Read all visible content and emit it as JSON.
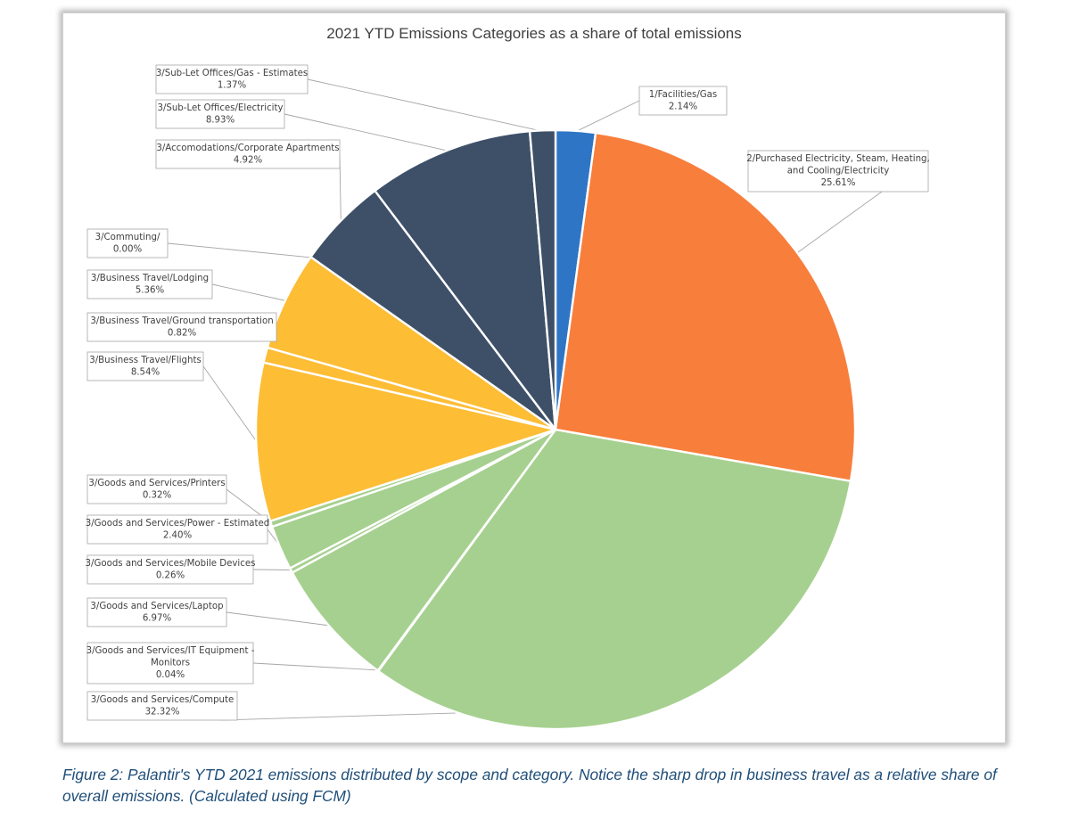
{
  "chart_data": {
    "type": "pie",
    "title": "2021 YTD Emissions Categories as a share of total emissions",
    "start": "12 o'clock",
    "direction": "clockwise",
    "slices": [
      {
        "name": "1/Facilities/Gas",
        "value": 2.14,
        "label": "2.14%",
        "color": "#2e75c6"
      },
      {
        "name": "2/Purchased Electricity, Steam, Heating, and Cooling/Electricity",
        "value": 25.61,
        "label": "25.61%",
        "color": "#f87e3c"
      },
      {
        "name": "3/Goods and Services/Compute",
        "value": 32.32,
        "label": "32.32%",
        "color": "#a6d08f"
      },
      {
        "name": "3/Goods and Services/IT Equipment - Monitors",
        "value": 0.04,
        "label": "0.04%",
        "color": "#a6d08f"
      },
      {
        "name": "3/Goods and Services/Laptop",
        "value": 6.97,
        "label": "6.97%",
        "color": "#a6d08f"
      },
      {
        "name": "3/Goods and Services/Mobile Devices",
        "value": 0.26,
        "label": "0.26%",
        "color": "#a6d08f"
      },
      {
        "name": "3/Goods and Services/Power - Estimated",
        "value": 2.4,
        "label": "2.40%",
        "color": "#a6d08f"
      },
      {
        "name": "3/Goods and Services/Printers",
        "value": 0.32,
        "label": "0.32%",
        "color": "#a6d08f"
      },
      {
        "name": "3/Business Travel/Flights",
        "value": 8.54,
        "label": "8.54%",
        "color": "#fdbd35"
      },
      {
        "name": "3/Business Travel/Ground transportation",
        "value": 0.82,
        "label": "0.82%",
        "color": "#fdbd35"
      },
      {
        "name": "3/Business Travel/Lodging",
        "value": 5.36,
        "label": "5.36%",
        "color": "#fdbd35"
      },
      {
        "name": "3/Commuting/",
        "value": 0.0,
        "label": "0.00%",
        "color": "#fdbd35"
      },
      {
        "name": "3/Accomodations/Corporate Apartments",
        "value": 4.92,
        "label": "4.92%",
        "color": "#3e5068"
      },
      {
        "name": "3/Sub-Let Offices/Electricity",
        "value": 8.93,
        "label": "8.93%",
        "color": "#3e5068"
      },
      {
        "name": "3/Sub-Let Offices/Gas - Estimates",
        "value": 1.37,
        "label": "1.37%",
        "color": "#3e5068"
      }
    ],
    "legend": "none (data callouts)"
  },
  "caption": "Figure 2: Palantir's YTD 2021 emissions distributed by scope and category. Notice the sharp drop in business travel as a relative share of overall emissions. (Calculated using FCM)"
}
